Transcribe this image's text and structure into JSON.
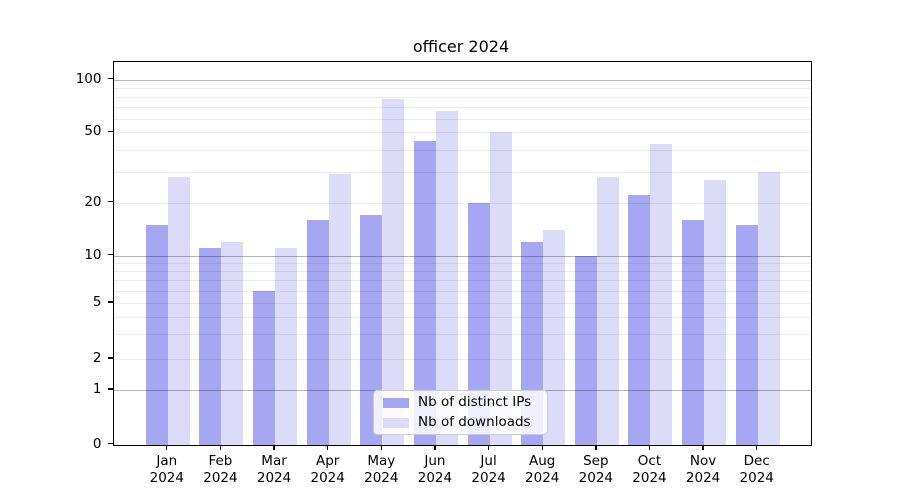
{
  "title": "officer 2024",
  "legend": {
    "items": [
      {
        "label": "Nb of distinct IPs",
        "color": "#a6a6f2"
      },
      {
        "label": "Nb of downloads",
        "color": "#dcdcf8"
      }
    ]
  },
  "chart_data": {
    "type": "bar",
    "title": "officer 2024",
    "categories": [
      "Jan 2024",
      "Feb 2024",
      "Mar 2024",
      "Apr 2024",
      "May 2024",
      "Jun 2024",
      "Jul 2024",
      "Aug 2024",
      "Sep 2024",
      "Oct 2024",
      "Nov 2024",
      "Dec 2024"
    ],
    "series": [
      {
        "name": "Nb of distinct IPs",
        "color": "#a6a6f2",
        "values": [
          15,
          11,
          6,
          16,
          17,
          45,
          20,
          12,
          10,
          22,
          16,
          15
        ]
      },
      {
        "name": "Nb of downloads",
        "color": "#dcdcf8",
        "values": [
          28,
          12,
          11,
          29,
          77,
          66,
          50,
          14,
          28,
          43,
          27,
          30
        ]
      }
    ],
    "xlabel": "",
    "ylabel": "",
    "yscale": "symlog-like",
    "yticks": [
      0,
      1,
      2,
      5,
      10,
      20,
      50,
      100
    ],
    "yticklabels": [
      "0",
      "1",
      "2",
      "5",
      "10",
      "20",
      "50",
      "100"
    ],
    "minor_yticks": [
      3,
      4,
      6,
      7,
      8,
      9,
      30,
      40,
      60,
      70,
      80,
      90
    ],
    "major_grid_values": [
      1,
      10,
      100
    ],
    "ylim": [
      0,
      126
    ],
    "grid": true,
    "legend_position": "lower center",
    "bar_colors": {
      "distinct_ips": "#a6a6f2",
      "downloads": "#dcdcf8"
    },
    "grid_color_minor": "#ececec",
    "grid_color_major": "#b5b5b5"
  }
}
